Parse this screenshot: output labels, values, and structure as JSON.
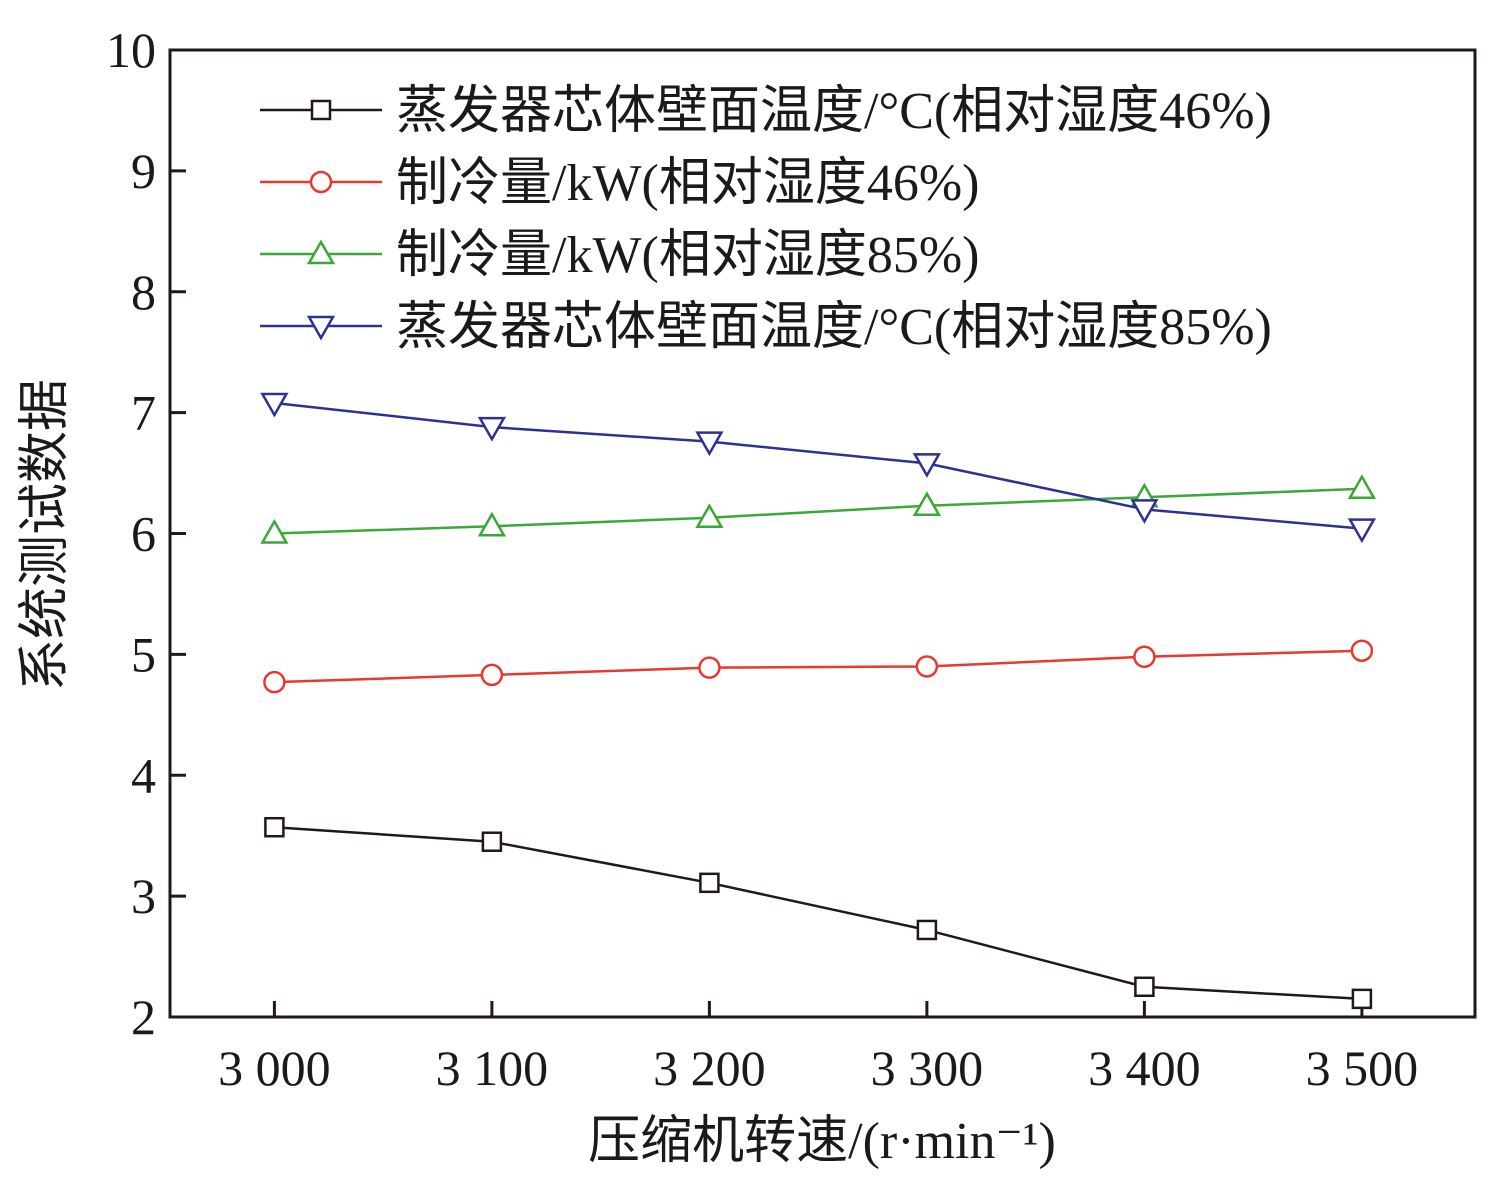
{
  "chart_data": {
    "type": "line",
    "title": "",
    "xlabel": "压缩机转速/(r·min⁻¹)",
    "ylabel": "系统测试数据",
    "x": [
      3000,
      3100,
      3200,
      3300,
      3400,
      3500
    ],
    "x_tick_labels": [
      "3 000",
      "3 100",
      "3 200",
      "3 300",
      "3 400",
      "3 500"
    ],
    "xlim": [
      2952,
      3552
    ],
    "ylim": [
      2,
      10
    ],
    "y_ticks": [
      2,
      3,
      4,
      5,
      6,
      7,
      8,
      9,
      10
    ],
    "y_tick_labels": [
      "2",
      "3",
      "4",
      "5",
      "6",
      "7",
      "8",
      "9",
      "10"
    ],
    "grid": false,
    "legend_position": "top-right",
    "series": [
      {
        "name": "蒸发器芯体壁面温度/°C(相对湿度46%)",
        "marker": "square",
        "color": "#231815",
        "values": [
          3.57,
          3.45,
          3.11,
          2.72,
          2.25,
          2.15
        ]
      },
      {
        "name": "制冷量/kW(相对湿度46%)",
        "marker": "circle",
        "color": "#e8382f",
        "values": [
          4.77,
          4.83,
          4.89,
          4.9,
          4.98,
          5.03
        ]
      },
      {
        "name": "制冷量/kW(相对湿度85%)",
        "marker": "triangle-up",
        "color": "#3aa935",
        "values": [
          6.0,
          6.06,
          6.13,
          6.23,
          6.3,
          6.37
        ]
      },
      {
        "name": "蒸发器芯体壁面温度/°C(相对湿度85%)",
        "marker": "triangle-down",
        "color": "#2e3192",
        "values": [
          7.08,
          6.88,
          6.76,
          6.58,
          6.2,
          6.04
        ]
      }
    ]
  }
}
